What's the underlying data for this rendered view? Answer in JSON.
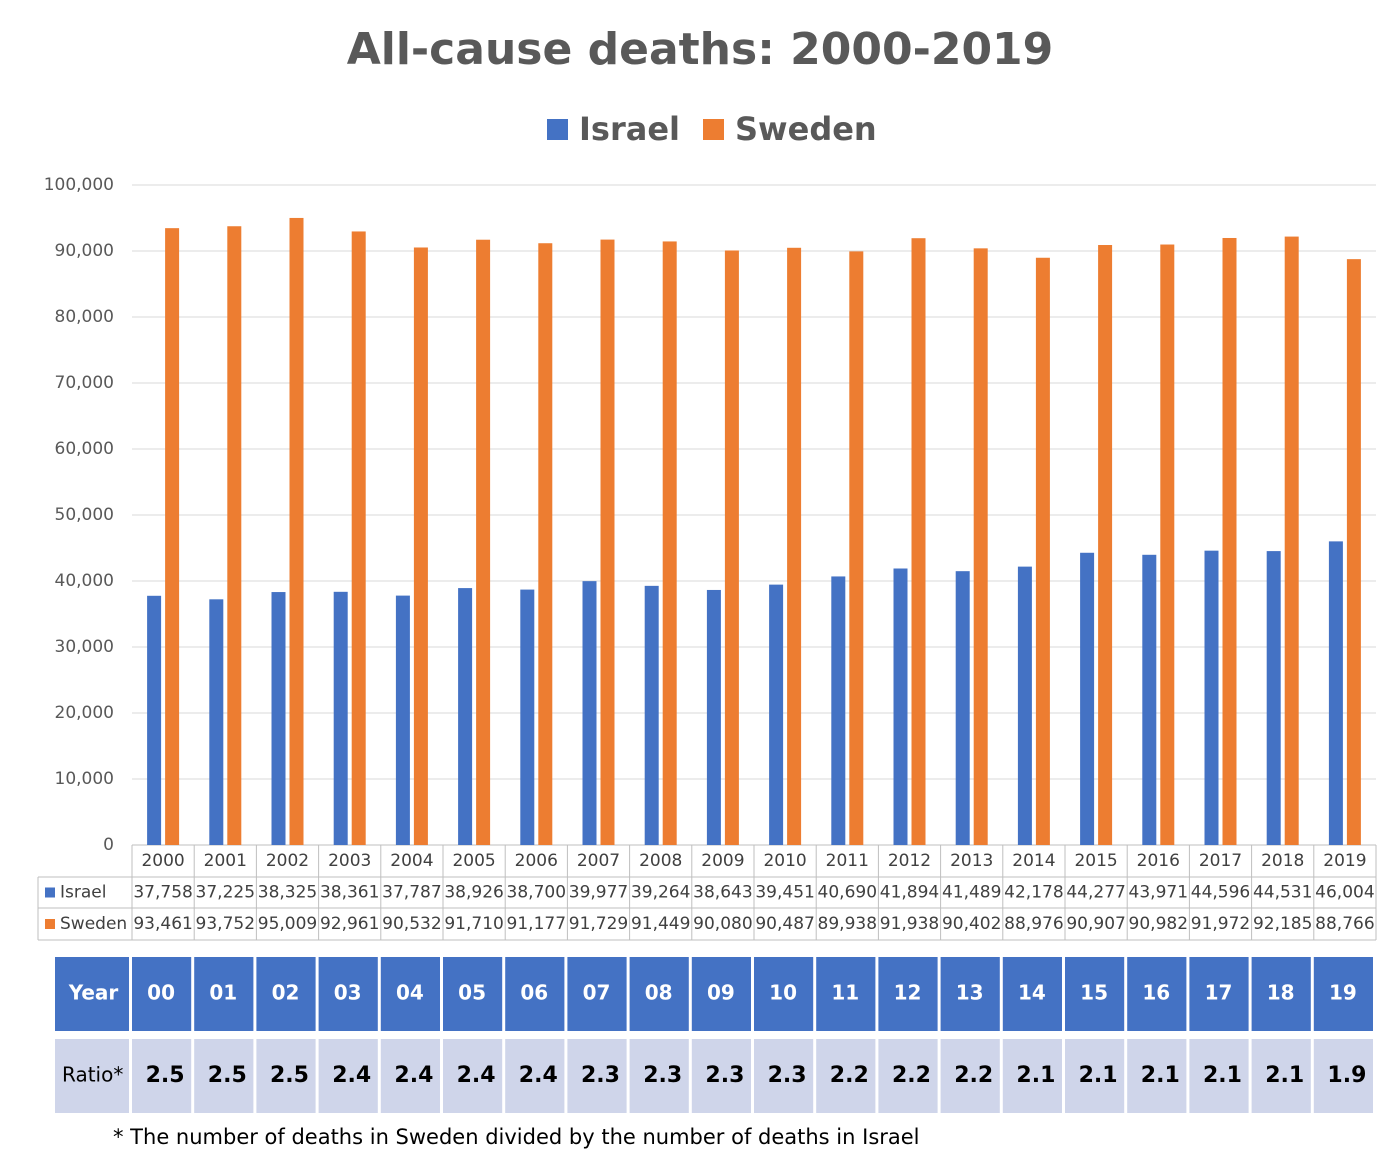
{
  "chart_data": {
    "type": "bar",
    "title": "All-cause deaths: 2000-2019",
    "categories": [
      "2000",
      "2001",
      "2002",
      "2003",
      "2004",
      "2005",
      "2006",
      "2007",
      "2008",
      "2009",
      "2010",
      "2011",
      "2012",
      "2013",
      "2014",
      "2015",
      "2016",
      "2017",
      "2018",
      "2019"
    ],
    "series": [
      {
        "name": "Israel",
        "color": "#4472c4",
        "values": [
          37758,
          37225,
          38325,
          38361,
          37787,
          38926,
          38700,
          39977,
          39264,
          38643,
          39451,
          40690,
          41894,
          41489,
          42178,
          44277,
          43971,
          44596,
          44531,
          46004
        ],
        "value_labels": [
          "37,758",
          "37,225",
          "38,325",
          "38,361",
          "37,787",
          "38,926",
          "38,700",
          "39,977",
          "39,264",
          "38,643",
          "39,451",
          "40,690",
          "41,894",
          "41,489",
          "42,178",
          "44,277",
          "43,971",
          "44,596",
          "44,531",
          "46,004"
        ]
      },
      {
        "name": "Sweden",
        "color": "#ed7d31",
        "values": [
          93461,
          93752,
          95009,
          92961,
          90532,
          91710,
          91177,
          91729,
          91449,
          90080,
          90487,
          89938,
          91938,
          90402,
          88976,
          90907,
          90982,
          91972,
          92185,
          88766
        ],
        "value_labels": [
          "93,461",
          "93,752",
          "95,009",
          "92,961",
          "90,532",
          "91,710",
          "91,177",
          "91,729",
          "91,449",
          "90,080",
          "90,487",
          "89,938",
          "91,938",
          "90,402",
          "88,976",
          "90,907",
          "90,982",
          "91,972",
          "92,185",
          "88,766"
        ]
      }
    ],
    "ylim": [
      0,
      100000
    ],
    "yticks": [
      0,
      {
        "value": 10000,
        "label": "10,000"
      },
      {
        "value": 20000,
        "label": "20,000"
      },
      {
        "value": 30000,
        "label": "30,000"
      },
      {
        "value": 40000,
        "label": "40,000"
      },
      {
        "value": 50000,
        "label": "50,000"
      },
      {
        "value": 60000,
        "label": "60,000"
      },
      {
        "value": 70000,
        "label": "70,000"
      },
      {
        "value": 80000,
        "label": "80,000"
      },
      {
        "value": 90000,
        "label": "90,000"
      },
      {
        "value": 100000,
        "label": "100,000"
      }
    ],
    "grid": true,
    "legend": "top"
  },
  "ratio_table": {
    "header": "Year",
    "row_label": "Ratio*",
    "years": [
      "00",
      "01",
      "02",
      "03",
      "04",
      "05",
      "06",
      "07",
      "08",
      "09",
      "10",
      "11",
      "12",
      "13",
      "14",
      "15",
      "16",
      "17",
      "18",
      "19"
    ],
    "values": [
      2.5,
      2.5,
      2.5,
      2.4,
      2.4,
      2.4,
      2.4,
      2.3,
      2.3,
      2.3,
      2.3,
      2.2,
      2.2,
      2.2,
      2.1,
      2.1,
      2.1,
      2.1,
      2.1,
      1.9
    ]
  },
  "footnote": "* The number of deaths in Sweden divided by the number of deaths in Israel"
}
